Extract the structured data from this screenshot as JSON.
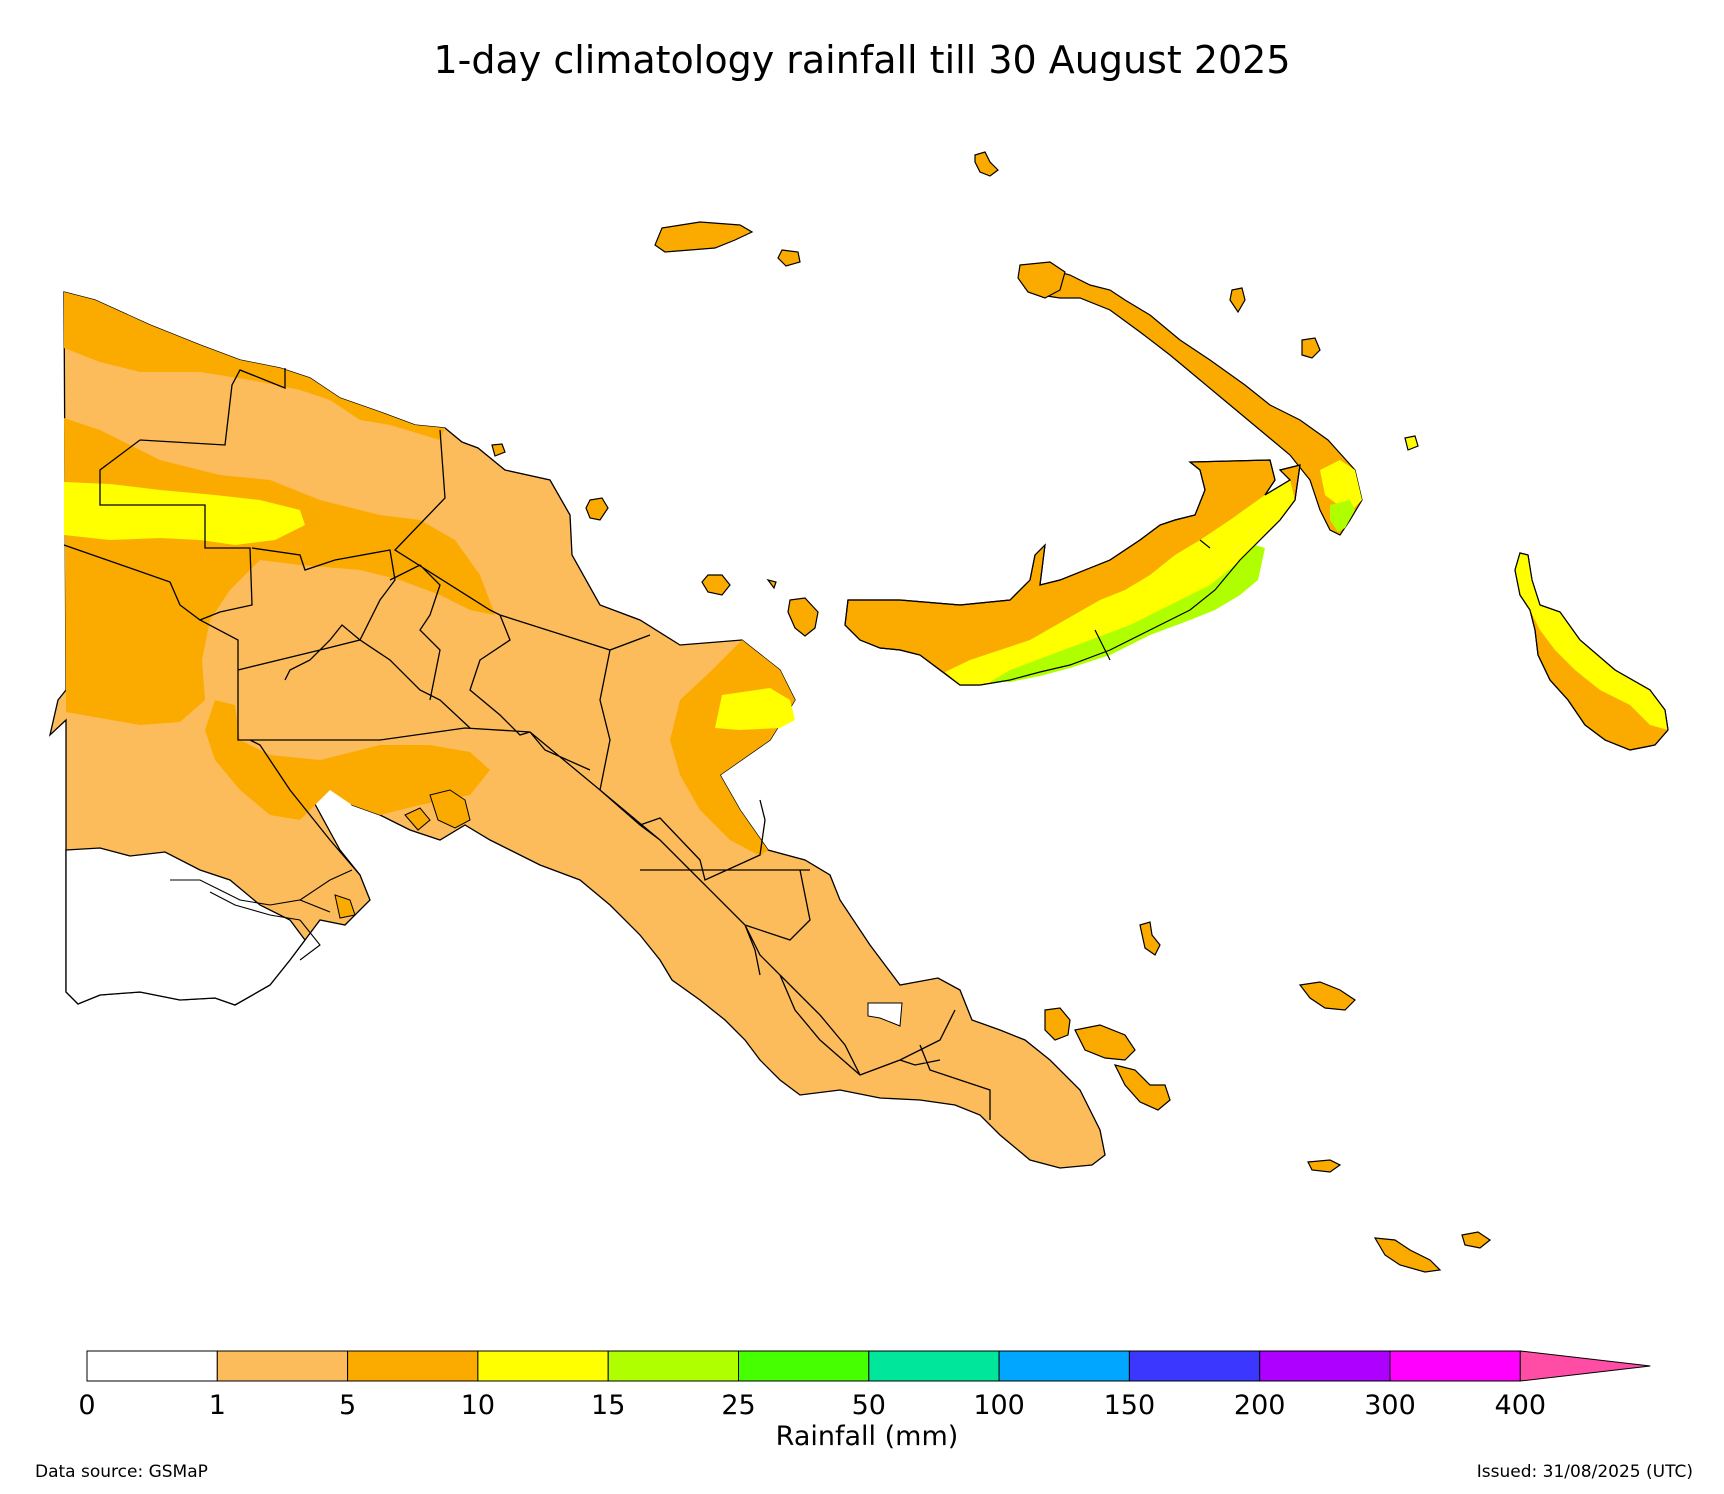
{
  "title": "1-day climatology rainfall till 30 August 2025",
  "colorbar": {
    "label": "Rainfall (mm)",
    "ticks": [
      "0",
      "1",
      "5",
      "10",
      "15",
      "25",
      "50",
      "100",
      "150",
      "200",
      "300",
      "400"
    ],
    "bins": [
      {
        "range": "0-1",
        "color": "#ffffff"
      },
      {
        "range": "1-5",
        "color": "#fcbc5b"
      },
      {
        "range": "5-10",
        "color": "#fbab00"
      },
      {
        "range": "10-15",
        "color": "#ffff00"
      },
      {
        "range": "15-25",
        "color": "#b0ff00"
      },
      {
        "range": "25-50",
        "color": "#46ff00"
      },
      {
        "range": "50-100",
        "color": "#00e69b"
      },
      {
        "range": "100-150",
        "color": "#00a6ff"
      },
      {
        "range": "150-200",
        "color": "#3b37ff"
      },
      {
        "range": "200-300",
        "color": "#ad00ff"
      },
      {
        "range": "300-400",
        "color": "#ff00ff"
      }
    ],
    "extend_color": "#ff4da6"
  },
  "footer": {
    "source": "Data source: GSMaP",
    "issued": "Issued: 31/08/2025 (UTC)"
  }
}
